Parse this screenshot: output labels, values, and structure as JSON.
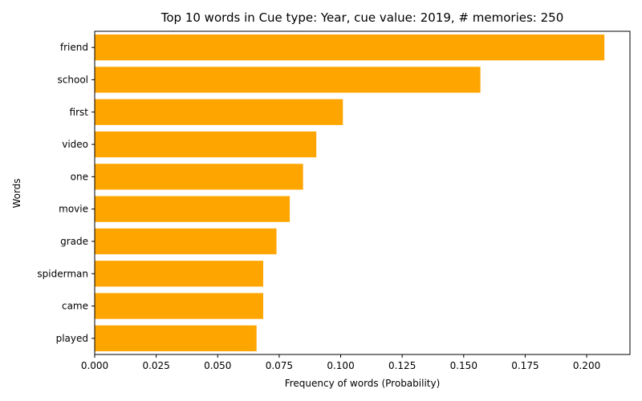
{
  "chart_data": {
    "type": "bar",
    "orientation": "horizontal",
    "title": "Top 10 words in Cue type: Year, cue value: 2019, # memories: 250",
    "xlabel": "Frequency of words (Probability)",
    "ylabel": "Words",
    "categories": [
      "friend",
      "school",
      "first",
      "video",
      "one",
      "movie",
      "grade",
      "spiderman",
      "came",
      "played"
    ],
    "values": [
      0.2072,
      0.1568,
      0.1009,
      0.0901,
      0.0847,
      0.0793,
      0.0739,
      0.0685,
      0.0685,
      0.0658
    ],
    "xlim": [
      0,
      0.2176
    ],
    "xticks": [
      "0.000",
      "0.025",
      "0.050",
      "0.075",
      "0.100",
      "0.125",
      "0.150",
      "0.175",
      "0.200"
    ],
    "bar_color": "#ffa500",
    "grid": false,
    "legend": "none"
  }
}
